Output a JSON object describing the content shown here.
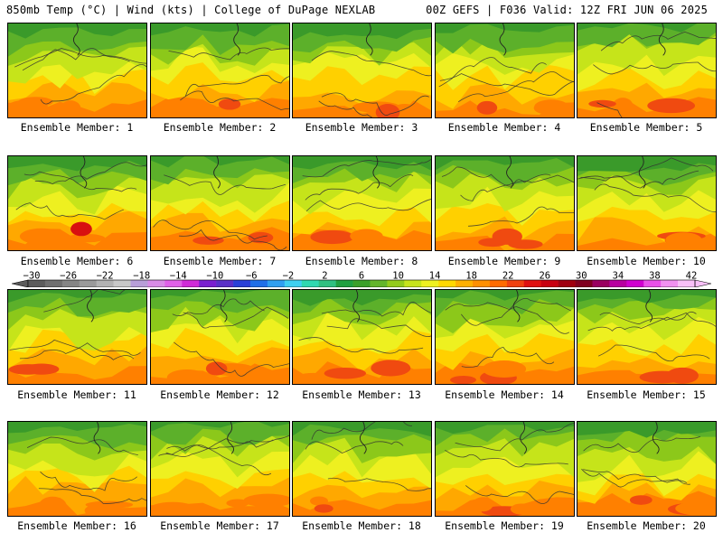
{
  "header": {
    "left": "850mb Temp (°C) | Wind (kts) | College of DuPage NEXLAB",
    "right": "00Z GEFS | F036 Valid: 12Z FRI JUN 06 2025"
  },
  "panels": [
    {
      "label": "Ensemble Member: 1"
    },
    {
      "label": "Ensemble Member: 2"
    },
    {
      "label": "Ensemble Member: 3"
    },
    {
      "label": "Ensemble Member: 4"
    },
    {
      "label": "Ensemble Member: 5"
    },
    {
      "label": "Ensemble Member: 6"
    },
    {
      "label": "Ensemble Member: 7"
    },
    {
      "label": "Ensemble Member: 8"
    },
    {
      "label": "Ensemble Member: 9"
    },
    {
      "label": "Ensemble Member: 10"
    },
    {
      "label": "Ensemble Member: 11"
    },
    {
      "label": "Ensemble Member: 12"
    },
    {
      "label": "Ensemble Member: 13"
    },
    {
      "label": "Ensemble Member: 14"
    },
    {
      "label": "Ensemble Member: 15"
    },
    {
      "label": "Ensemble Member: 16"
    },
    {
      "label": "Ensemble Member: 17"
    },
    {
      "label": "Ensemble Member: 18"
    },
    {
      "label": "Ensemble Member: 19"
    },
    {
      "label": "Ensemble Member: 20"
    }
  ],
  "colorbar": {
    "labels": [
      "-30",
      "-26",
      "-22",
      "-18",
      "-14",
      "-10",
      "-6",
      "-2",
      "2",
      "6",
      "10",
      "14",
      "18",
      "22",
      "26",
      "30",
      "34",
      "38",
      "42"
    ],
    "colors": [
      "#5c5c5c",
      "#707070",
      "#858585",
      "#9a9a9a",
      "#b2b2b2",
      "#c8c8c8",
      "#b89ed8",
      "#d98be6",
      "#e060e8",
      "#d02ad8",
      "#7a1fd0",
      "#5a2fc8",
      "#2a3fd8",
      "#1f6fe8",
      "#2f9ff0",
      "#3fd0f0",
      "#2fd8b0",
      "#2fc080",
      "#1fa040",
      "#3aa02a",
      "#63b52a",
      "#93cc1a",
      "#c6e41a",
      "#eef020",
      "#ffd800",
      "#ffb000",
      "#ff9000",
      "#ff6a00",
      "#f04010",
      "#e01010",
      "#c80010",
      "#a00010",
      "#800020",
      "#9a0060",
      "#b800a0",
      "#d000d0",
      "#e850e8",
      "#f090f0",
      "#f8c0f8"
    ]
  },
  "map_colors": {
    "green_dark": "#3a9a2a",
    "green_mid": "#5cb02a",
    "green_light": "#8cc81a",
    "yellow_green": "#c6e41a",
    "yellow": "#eef020",
    "gold": "#ffd000",
    "orange_light": "#ffa800",
    "orange": "#ff8000",
    "red_orange": "#f04a10",
    "red": "#d81010"
  }
}
